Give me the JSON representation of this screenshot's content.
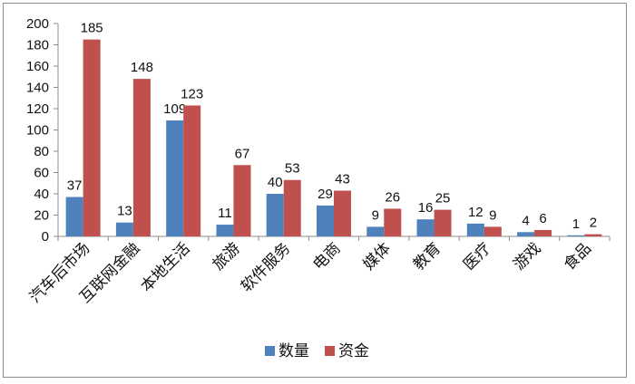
{
  "chart_data": {
    "type": "bar",
    "categories": [
      "汽车后市场",
      "互联网金融",
      "本地生活",
      "旅游",
      "软件服务",
      "电商",
      "媒体",
      "教育",
      "医疗",
      "游戏",
      "食品"
    ],
    "series": [
      {
        "name": "数量",
        "color": "#4f81bd",
        "values": [
          37,
          13,
          109,
          11,
          40,
          29,
          9,
          16,
          12,
          4,
          1
        ]
      },
      {
        "name": "资金",
        "color": "#c0504d",
        "values": [
          185,
          148,
          123,
          67,
          53,
          43,
          26,
          25,
          9,
          6,
          2
        ]
      }
    ],
    "ylim": [
      0,
      200
    ],
    "yticks": [
      0,
      20,
      40,
      60,
      80,
      100,
      120,
      140,
      160,
      180,
      200
    ],
    "grid": false,
    "legend_position": "bottom",
    "data_labels": true
  }
}
